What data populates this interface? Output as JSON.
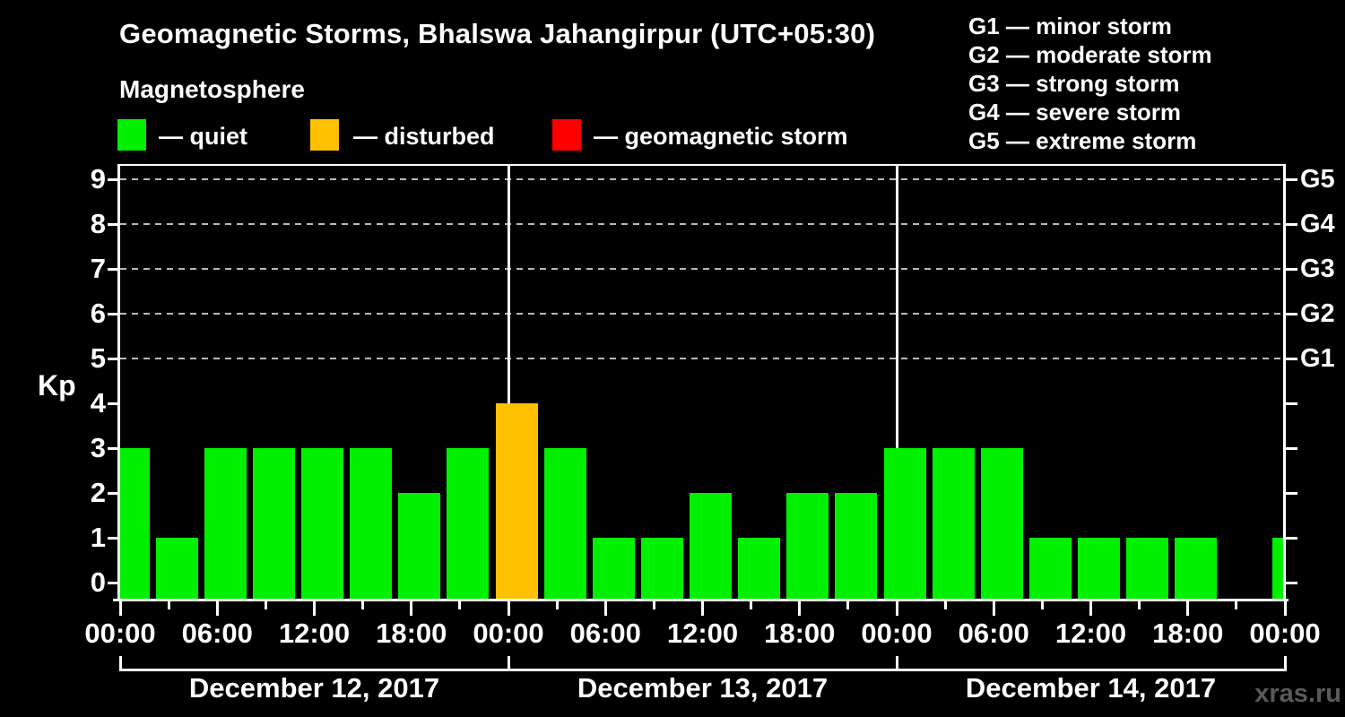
{
  "header": {
    "title": "Geomagnetic Storms, Bhalswa Jahangirpur (UTC+05:30)",
    "subtitle": "Magnetosphere"
  },
  "legend": {
    "items": [
      {
        "label": "— quiet",
        "color": "#00f000"
      },
      {
        "label": "— disturbed",
        "color": "#ffc000"
      },
      {
        "label": "— geomagnetic storm",
        "color": "#ff0000"
      }
    ]
  },
  "storm_scale": [
    "G1 — minor storm",
    "G2 — moderate storm",
    "G3 — strong storm",
    "G4 — severe storm",
    "G5 — extreme storm"
  ],
  "watermark": "xras.ru",
  "chart_data": {
    "type": "bar",
    "title": "Geomagnetic Storms, Bhalswa Jahangirpur (UTC+05:30)",
    "ylabel": "Kp",
    "ylim": [
      0,
      9
    ],
    "yticks": [
      0,
      1,
      2,
      3,
      4,
      5,
      6,
      7,
      8,
      9
    ],
    "dashed_gridlines_at": [
      5,
      6,
      7,
      8,
      9
    ],
    "grid_color": "#b9b9b9",
    "axis_color": "#ffffff",
    "bar_interval_hours": 3,
    "days": [
      {
        "date": "December 12, 2017",
        "kp_values": [
          3,
          1,
          3,
          3,
          3,
          3,
          2,
          3
        ]
      },
      {
        "date": "December 13, 2017",
        "kp_values": [
          4,
          3,
          1,
          1,
          2,
          1,
          2,
          2
        ]
      },
      {
        "date": "December 14, 2017",
        "kp_values": [
          3,
          3,
          3,
          1,
          1,
          1,
          1,
          0
        ]
      }
    ],
    "next_period": {
      "time": "00:00",
      "kp": 1
    },
    "x_tick_labels": [
      "00:00",
      "06:00",
      "12:00",
      "18:00",
      "00:00",
      "06:00",
      "12:00",
      "18:00",
      "00:00",
      "06:00",
      "12:00",
      "18:00",
      "00:00"
    ],
    "right_axis": [
      {
        "kp": 9,
        "label": "G5"
      },
      {
        "kp": 8,
        "label": "G4"
      },
      {
        "kp": 7,
        "label": "G3"
      },
      {
        "kp": 6,
        "label": "G2"
      },
      {
        "kp": 5,
        "label": "G1"
      }
    ],
    "colors": {
      "quiet": "#00f000",
      "disturbed": "#ffc000",
      "storm": "#ff0000"
    },
    "color_thresholds": {
      "disturbed_at_kp": 4,
      "storm_at_kp": 5
    },
    "legend_position": "top-left"
  }
}
